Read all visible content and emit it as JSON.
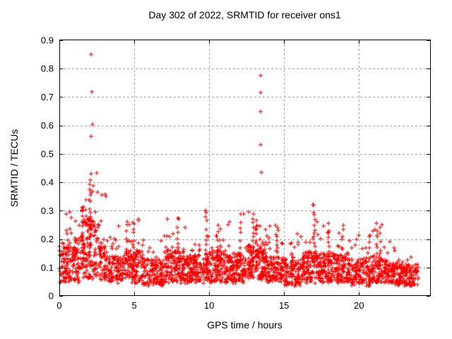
{
  "chart_data": {
    "type": "scatter",
    "title": "Day 302 of 2022, SRMTID for receiver ons1",
    "xlabel": "GPS time / hours",
    "ylabel": "SRMTID / TECUs",
    "xlim": [
      0,
      24.75
    ],
    "ylim": [
      0,
      0.9
    ],
    "x_ticks": [
      0,
      5,
      10,
      15,
      20
    ],
    "x_tick_labels": [
      "0",
      "5",
      "10",
      "15",
      "20"
    ],
    "y_ticks": [
      0,
      0.1,
      0.2,
      0.3,
      0.4,
      0.5,
      0.6,
      0.7,
      0.8,
      0.9
    ],
    "y_tick_labels": [
      "0",
      "0.1",
      "0.2",
      "0.3",
      "0.4",
      "0.5",
      "0.6",
      "0.7",
      "0.8",
      "0.9"
    ],
    "grid": true,
    "grid_color": "#a6a6a6",
    "border_color": "#000000",
    "legend": "none",
    "marker": {
      "shape": "plus",
      "color": "#ff0000",
      "size": 7
    },
    "series_name": "SRMTID",
    "outliers": [
      [
        2.12,
        0.85
      ],
      [
        2.15,
        0.718
      ],
      [
        2.2,
        0.603
      ],
      [
        2.12,
        0.563
      ],
      [
        2.12,
        0.43
      ],
      [
        2.26,
        0.388
      ],
      [
        13.43,
        0.775
      ],
      [
        13.43,
        0.715
      ],
      [
        13.43,
        0.65
      ],
      [
        13.45,
        0.533
      ],
      [
        13.49,
        0.435
      ],
      [
        3.05,
        0.357
      ],
      [
        3.12,
        0.35
      ]
    ],
    "streaks": [
      {
        "x": 2.05,
        "y0": 0.1,
        "y1": 0.4,
        "n": 16
      },
      {
        "x": 1.55,
        "y0": 0.1,
        "y1": 0.33,
        "n": 12
      },
      {
        "x": 4.95,
        "y0": 0.08,
        "y1": 0.27,
        "n": 10
      },
      {
        "x": 7.9,
        "y0": 0.08,
        "y1": 0.28,
        "n": 10
      },
      {
        "x": 9.82,
        "y0": 0.1,
        "y1": 0.32,
        "n": 10
      },
      {
        "x": 10.55,
        "y0": 0.08,
        "y1": 0.26,
        "n": 10
      },
      {
        "x": 12.1,
        "y0": 0.12,
        "y1": 0.305,
        "n": 8
      },
      {
        "x": 12.95,
        "y0": 0.1,
        "y1": 0.3,
        "n": 12
      },
      {
        "x": 13.15,
        "y0": 0.1,
        "y1": 0.28,
        "n": 10
      },
      {
        "x": 14.55,
        "y0": 0.08,
        "y1": 0.25,
        "n": 8
      },
      {
        "x": 17.02,
        "y0": 0.1,
        "y1": 0.325,
        "n": 14
      },
      {
        "x": 17.98,
        "y0": 0.1,
        "y1": 0.26,
        "n": 10
      },
      {
        "x": 18.9,
        "y0": 0.08,
        "y1": 0.26,
        "n": 10
      },
      {
        "x": 21.2,
        "y0": 0.1,
        "y1": 0.26,
        "n": 10
      }
    ],
    "band_segments_format": [
      "x_start_h",
      "x_end_h",
      "y_floor",
      "y_band_top",
      "y_peak",
      "points_per_hour"
    ],
    "band_segments": [
      [
        0.0,
        0.5,
        0.05,
        0.17,
        0.32,
        110
      ],
      [
        0.5,
        1.0,
        0.05,
        0.18,
        0.3,
        110
      ],
      [
        1.0,
        1.6,
        0.05,
        0.22,
        0.33,
        120
      ],
      [
        1.6,
        2.6,
        0.06,
        0.28,
        0.43,
        130
      ],
      [
        2.6,
        3.2,
        0.06,
        0.2,
        0.37,
        110
      ],
      [
        3.2,
        4.4,
        0.05,
        0.14,
        0.25,
        100
      ],
      [
        4.4,
        5.6,
        0.05,
        0.16,
        0.28,
        110
      ],
      [
        5.6,
        7.0,
        0.04,
        0.13,
        0.22,
        100
      ],
      [
        7.0,
        8.4,
        0.05,
        0.16,
        0.28,
        110
      ],
      [
        8.4,
        9.6,
        0.05,
        0.14,
        0.22,
        105
      ],
      [
        9.6,
        10.1,
        0.05,
        0.15,
        0.32,
        105
      ],
      [
        10.1,
        11.2,
        0.05,
        0.16,
        0.26,
        110
      ],
      [
        11.2,
        12.3,
        0.05,
        0.15,
        0.31,
        110
      ],
      [
        12.3,
        13.8,
        0.06,
        0.18,
        0.3,
        115
      ],
      [
        13.8,
        15.0,
        0.05,
        0.14,
        0.25,
        105
      ],
      [
        15.0,
        16.3,
        0.04,
        0.13,
        0.22,
        100
      ],
      [
        16.3,
        17.3,
        0.05,
        0.16,
        0.32,
        110
      ],
      [
        17.3,
        18.4,
        0.05,
        0.15,
        0.26,
        105
      ],
      [
        18.4,
        19.4,
        0.05,
        0.15,
        0.26,
        105
      ],
      [
        19.4,
        20.8,
        0.04,
        0.13,
        0.22,
        100
      ],
      [
        20.8,
        21.6,
        0.05,
        0.14,
        0.26,
        105
      ],
      [
        21.6,
        22.6,
        0.04,
        0.12,
        0.2,
        100
      ],
      [
        22.6,
        23.95,
        0.04,
        0.11,
        0.15,
        100
      ]
    ],
    "synth": {
      "seed": 302,
      "band_exponent": 1.3,
      "tail_fraction": 0.16,
      "tail_exponent": 2.2
    }
  }
}
